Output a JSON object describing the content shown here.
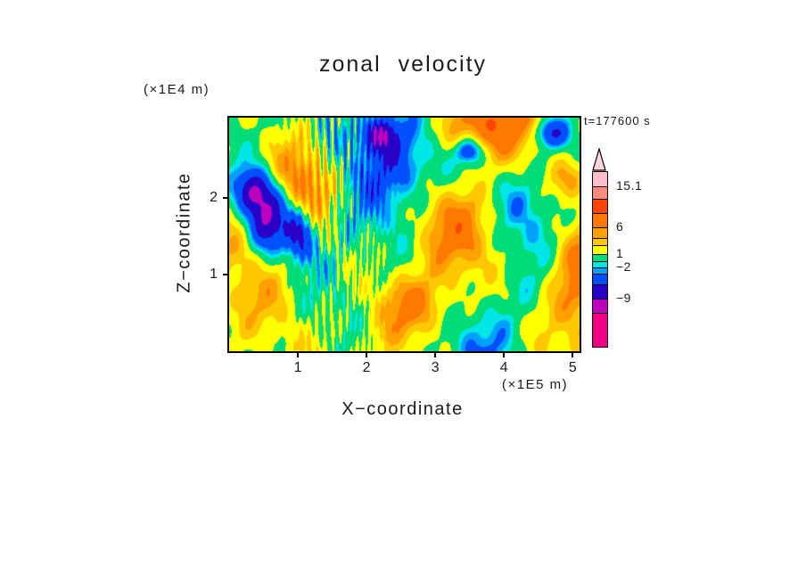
{
  "title": "zonal velocity",
  "timestamp": "t=177600 s",
  "axes": {
    "x_label": "X−coordinate",
    "x_unit": "(×1E5 m)",
    "x_ticks": [
      "1",
      "2",
      "3",
      "4",
      "5"
    ],
    "x_tick_values": [
      1,
      2,
      3,
      4,
      5
    ],
    "y_label": "Z−coordinate",
    "y_unit": "(×1E4 m)",
    "y_ticks": [
      "1",
      "2"
    ],
    "y_tick_values": [
      1,
      2
    ]
  },
  "colorbar": {
    "arrow_color": "#FFD7DE",
    "segments": [
      {
        "color": "#FFBEC8",
        "h": 16
      },
      {
        "color": "#FC8D7E",
        "h": 14
      },
      {
        "color": "#FF4500",
        "h": 16
      },
      {
        "color": "#FF7800",
        "h": 16
      },
      {
        "color": "#FFA000",
        "h": 12
      },
      {
        "color": "#FFC800",
        "h": 8
      },
      {
        "color": "#FFFF00",
        "h": 10
      },
      {
        "color": "#00DC78",
        "h": 8
      },
      {
        "color": "#00E6E6",
        "h": 7
      },
      {
        "color": "#00A0FF",
        "h": 7
      },
      {
        "color": "#0050FF",
        "h": 12
      },
      {
        "color": "#2800C8",
        "h": 16
      },
      {
        "color": "#BE00BE",
        "h": 16
      },
      {
        "color": "#F00082",
        "h": 38
      }
    ],
    "labels": [
      {
        "text": "15.1",
        "after": 1
      },
      {
        "text": "6",
        "after": 4
      },
      {
        "text": "1",
        "after": 7
      },
      {
        "text": "−2",
        "after": 9
      },
      {
        "text": "−9",
        "after": 12
      }
    ]
  },
  "chart_data": {
    "type": "heatmap",
    "subtype": "filled_contour",
    "title": "zonal velocity",
    "xlabel": "X−coordinate",
    "x_unit": "(×1E5 m)",
    "ylabel": "Z−coordinate",
    "y_unit": "(×1E4 m)",
    "time_label": "t=177600 s",
    "x_range": [
      0,
      5.1
    ],
    "z_range": [
      0,
      3.05
    ],
    "x_tick_values": [
      1,
      2,
      3,
      4,
      5
    ],
    "z_tick_values": [
      1,
      2
    ],
    "levels": [
      -12,
      -9,
      -6,
      -3,
      -2,
      -1,
      1,
      3,
      4.5,
      6,
      9,
      12,
      15.1
    ],
    "colors": [
      "#F00082",
      "#BE00BE",
      "#2800C8",
      "#0050FF",
      "#00A0FF",
      "#00E6E6",
      "#00DC78",
      "#FFFF00",
      "#FFC800",
      "#FFA000",
      "#FF7800",
      "#FF4500",
      "#FC8D7E",
      "#FFBEC8"
    ],
    "colorbar_tick_labels": [
      "15.1",
      "6",
      "1",
      "−2",
      "−9"
    ],
    "value_max": 15.1,
    "description": "Filled-contour field of zonal velocity: mostly green/yellow/cyan with orange maxima on the right half, deep blue/purple minima near x≈0.5–1 and z≈1.5–2, fine vertical wave filaments around x≈1–2, and scattered dark blue minima along the upper boundary.",
    "field": {
      "offset": 0.8,
      "sinusoids": [
        {
          "a": 1.6,
          "kx": 1.2,
          "kz": 0.7,
          "ph": 0.3
        },
        {
          "a": 1.3,
          "kx": 2.4,
          "kz": -1.3,
          "ph": 2.1
        },
        {
          "a": 1.1,
          "kx": 3.6,
          "kz": 2.7,
          "ph": 4.2
        },
        {
          "a": 0.9,
          "kx": 5.9,
          "kz": -4.1,
          "ph": 1.2
        },
        {
          "a": 0.7,
          "kx": 9.3,
          "kz": 6.7,
          "ph": 3.3
        },
        {
          "a": 0.5,
          "kx": 14.1,
          "kz": -9.3,
          "ph": 0.7
        }
      ],
      "blobs": [
        {
          "a": -11,
          "x": 0.55,
          "z": 1.75,
          "sx": 0.22,
          "sz": 0.33
        },
        {
          "a": -9,
          "x": 1.02,
          "z": 1.5,
          "sx": 0.16,
          "sz": 0.25
        },
        {
          "a": -8,
          "x": 0.33,
          "z": 2.1,
          "sx": 0.18,
          "sz": 0.2
        },
        {
          "a": -8,
          "x": 2.2,
          "z": 2.85,
          "sx": 0.22,
          "sz": 0.18
        },
        {
          "a": -7,
          "x": 3.5,
          "z": 2.62,
          "sx": 0.14,
          "sz": 0.12
        },
        {
          "a": -7,
          "x": 4.68,
          "z": 2.85,
          "sx": 0.18,
          "sz": 0.14
        },
        {
          "a": -4,
          "x": 4.35,
          "z": 1.9,
          "sx": 0.55,
          "sz": 0.5
        },
        {
          "a": -3.5,
          "x": 2.6,
          "z": 2.45,
          "sx": 0.5,
          "sz": 0.35
        },
        {
          "a": 6,
          "x": 3.35,
          "z": 1.55,
          "sx": 0.55,
          "sz": 0.5
        },
        {
          "a": 6,
          "x": 3.6,
          "z": 2.95,
          "sx": 0.55,
          "sz": 0.28
        },
        {
          "a": 5,
          "x": 2.75,
          "z": 0.6,
          "sx": 0.4,
          "sz": 0.28
        },
        {
          "a": 5,
          "x": 5.05,
          "z": 0.9,
          "sx": 0.35,
          "sz": 0.6
        },
        {
          "a": 4.5,
          "x": 1.1,
          "z": 2.2,
          "sx": 0.28,
          "sz": 0.33
        },
        {
          "a": 4,
          "x": 4.95,
          "z": 2.25,
          "sx": 0.25,
          "sz": 0.2
        }
      ],
      "stripes": [
        {
          "a": 3.0,
          "x0": 1.45,
          "w": 0.32,
          "k": 55,
          "kz": 2.5
        },
        {
          "a": 2.2,
          "x0": 1.9,
          "w": 0.26,
          "k": 75,
          "kz": -3.5
        }
      ]
    }
  }
}
